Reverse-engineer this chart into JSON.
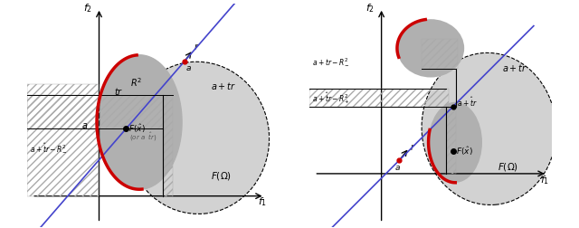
{
  "fig_width": 6.4,
  "fig_height": 2.53,
  "dpi": 100,
  "bg_color": "#ffffff",
  "gray_light": "#d2d2d2",
  "gray_dark": "#b0b0b0",
  "red_color": "#cc0000",
  "blue_color": "#4444cc",
  "black": "#000000",
  "hatch_color": "#888888"
}
